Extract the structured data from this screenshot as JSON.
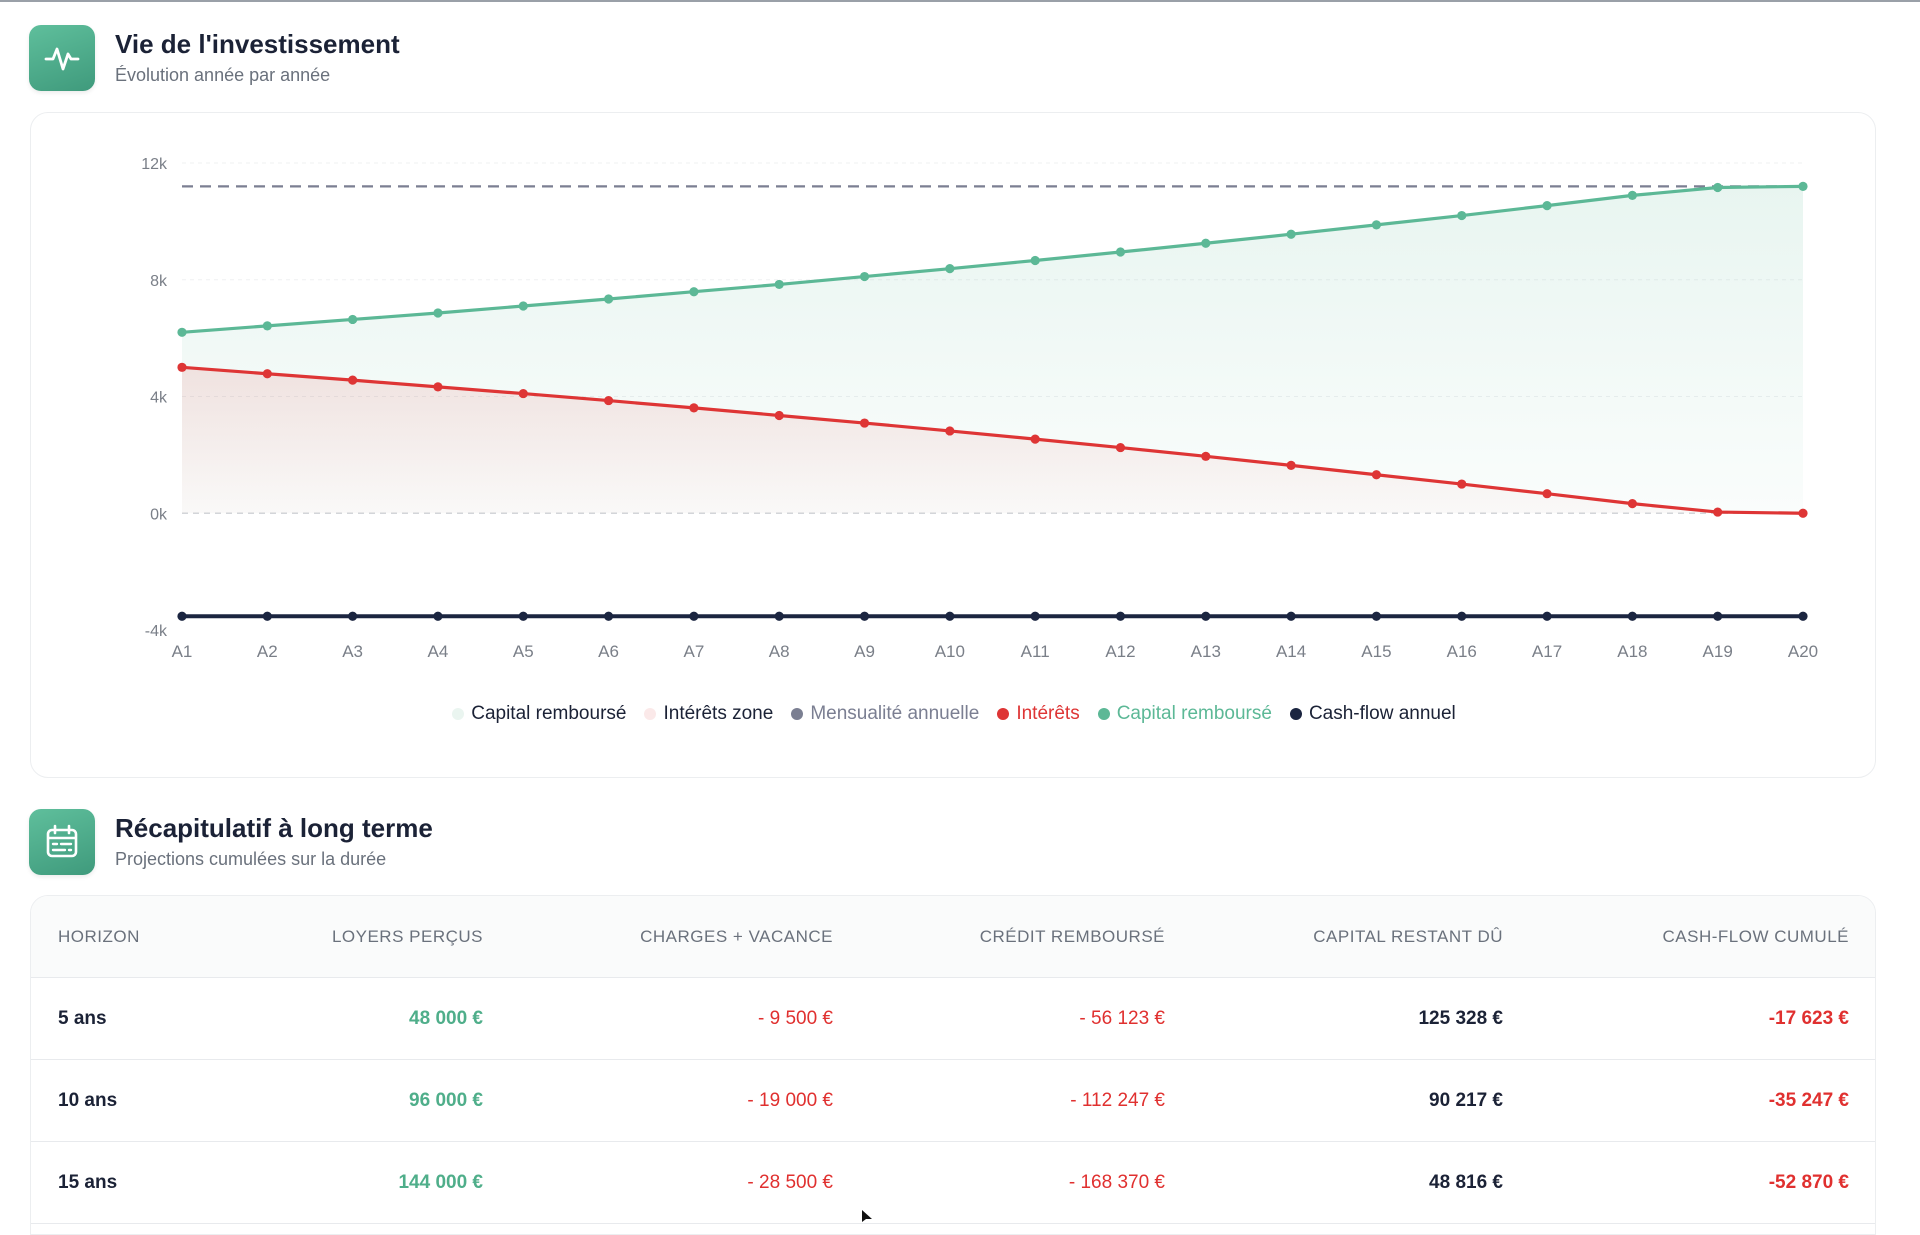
{
  "colors": {
    "accent_green": "#5cb896",
    "red": "#de3535",
    "dark_navy": "#1b2540",
    "gray_dash": "#7b7f92"
  },
  "investment_section": {
    "icon": "activity-pulse-icon",
    "title": "Vie de l'investissement",
    "subtitle": "Évolution année par année"
  },
  "chart_data": {
    "type": "line",
    "x": [
      "A1",
      "A2",
      "A3",
      "A4",
      "A5",
      "A6",
      "A7",
      "A8",
      "A9",
      "A10",
      "A11",
      "A12",
      "A13",
      "A14",
      "A15",
      "A16",
      "A17",
      "A18",
      "A19",
      "A20"
    ],
    "y_ticks": [
      "12k",
      "8k",
      "4k",
      "0k",
      "-4k"
    ],
    "ylim": [
      -4000,
      12000
    ],
    "grid": "horizontal dashed",
    "legend_position": "bottom",
    "series": [
      {
        "name": "Capital remboursé",
        "kind": "area",
        "color": "#5cb896",
        "values": [
          6200,
          6420,
          6640,
          6860,
          7100,
          7340,
          7590,
          7840,
          8110,
          8380,
          8660,
          8950,
          9250,
          9560,
          9880,
          10200,
          10540,
          10890,
          11160,
          11200
        ]
      },
      {
        "name": "Intérêts zone",
        "kind": "area",
        "color": "#de3535",
        "values": [
          5000,
          4780,
          4560,
          4330,
          4100,
          3860,
          3610,
          3350,
          3090,
          2820,
          2540,
          2250,
          1950,
          1640,
          1320,
          1000,
          670,
          330,
          40,
          0
        ]
      },
      {
        "name": "Mensualité annuelle",
        "kind": "dashed-line",
        "color": "#7b7f92",
        "values": [
          11200,
          11200,
          11200,
          11200,
          11200,
          11200,
          11200,
          11200,
          11200,
          11200,
          11200,
          11200,
          11200,
          11200,
          11200,
          11200,
          11200,
          11200,
          11200,
          11200
        ]
      },
      {
        "name": "Intérêts",
        "kind": "line",
        "color": "#de3535",
        "values": [
          5000,
          4780,
          4560,
          4330,
          4100,
          3860,
          3610,
          3350,
          3090,
          2820,
          2540,
          2250,
          1950,
          1640,
          1320,
          1000,
          670,
          330,
          40,
          0
        ]
      },
      {
        "name": "Capital remboursé",
        "kind": "line",
        "color": "#5cb896",
        "values": [
          6200,
          6420,
          6640,
          6860,
          7100,
          7340,
          7590,
          7840,
          8110,
          8380,
          8660,
          8950,
          9250,
          9560,
          9880,
          10200,
          10540,
          10890,
          11160,
          11200
        ]
      },
      {
        "name": "Cash-flow annuel",
        "kind": "line",
        "color": "#1b2540",
        "values": [
          -3530,
          -3530,
          -3530,
          -3530,
          -3530,
          -3530,
          -3530,
          -3530,
          -3530,
          -3530,
          -3530,
          -3530,
          -3530,
          -3530,
          -3530,
          -3530,
          -3530,
          -3530,
          -3530,
          -3530
        ]
      }
    ],
    "legend": [
      {
        "label": "Capital remboursé",
        "dot_color": "#eaf5f0",
        "text_color": "#1b2236"
      },
      {
        "label": "Intérêts zone",
        "dot_color": "#fbe9e9",
        "text_color": "#1b2236"
      },
      {
        "label": "Mensualité annuelle",
        "dot_color": "#7b7f92",
        "text_color": "#7b7f92"
      },
      {
        "label": "Intérêts",
        "dot_color": "#de3535",
        "text_color": "#de3535"
      },
      {
        "label": "Capital remboursé",
        "dot_color": "#5cb896",
        "text_color": "#5cb896"
      },
      {
        "label": "Cash-flow annuel",
        "dot_color": "#1b2540",
        "text_color": "#1b2236"
      }
    ]
  },
  "summary_section": {
    "icon": "calendar-icon",
    "title": "Récapitulatif à long terme",
    "subtitle": "Projections cumulées sur la durée"
  },
  "summary_table": {
    "headers": [
      "HORIZON",
      "LOYERS PERÇUS",
      "CHARGES + VACANCE",
      "CRÉDIT REMBOURSÉ",
      "CAPITAL RESTANT DÛ",
      "CASH-FLOW CUMULÉ"
    ],
    "rows": [
      {
        "horizon": "5 ans",
        "loyers": "48 000 €",
        "charges": "- 9 500 €",
        "credit": "- 56 123 €",
        "capital": "125 328 €",
        "cashflow": "-17 623 €"
      },
      {
        "horizon": "10 ans",
        "loyers": "96 000 €",
        "charges": "- 19 000 €",
        "credit": "- 112 247 €",
        "capital": "90 217 €",
        "cashflow": "-35 247 €"
      },
      {
        "horizon": "15 ans",
        "loyers": "144 000 €",
        "charges": "- 28 500 €",
        "credit": "- 168 370 €",
        "capital": "48 816 €",
        "cashflow": "-52 870 €"
      }
    ]
  }
}
